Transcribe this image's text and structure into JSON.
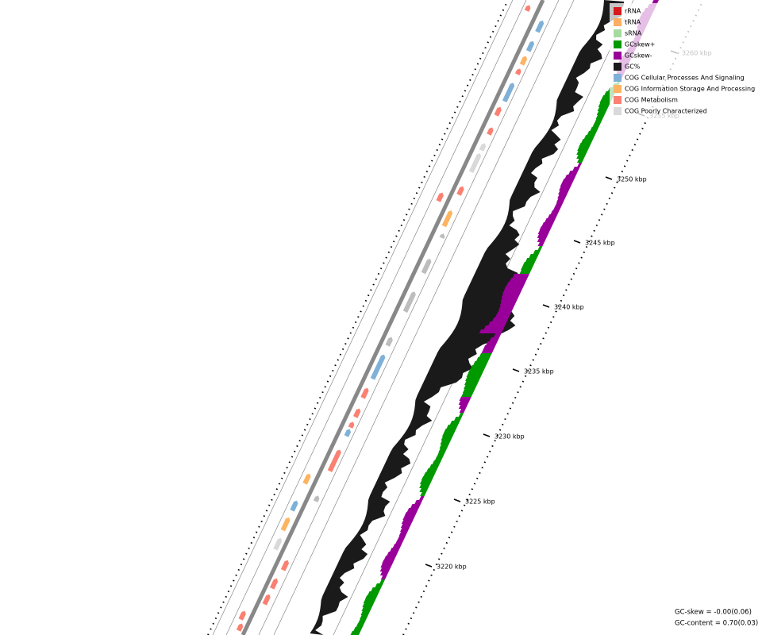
{
  "legend": [
    {
      "label": "rRNA",
      "color": "#d7191c"
    },
    {
      "label": "tRNA",
      "color": "#fdae61"
    },
    {
      "label": "sRNA",
      "color": "#a6dba0"
    },
    {
      "label": "GCskew+",
      "color": "#009900"
    },
    {
      "label": "GCskew-",
      "color": "#990099"
    },
    {
      "label": "GC%",
      "color": "#1a1a1a"
    },
    {
      "label": "COG Cellular Processes And Signaling",
      "color": "#7fb1d8"
    },
    {
      "label": "COG Information Storage And Processing",
      "color": "#fdb462"
    },
    {
      "label": "COG Metabolism",
      "color": "#fb8072"
    },
    {
      "label": "COG Poorly Characterized",
      "color": "#d9d9d9"
    }
  ],
  "ticks": [
    "3220 kbp",
    "3225 kbp",
    "3230 kbp",
    "3235 kbp",
    "3240 kbp",
    "3245 kbp",
    "3250 kbp",
    "3255 kbp",
    "3260 kbp"
  ],
  "footer": [
    "GC-skew = -0.00(0.06)",
    "GC-content = 0.70(0.03)"
  ]
}
